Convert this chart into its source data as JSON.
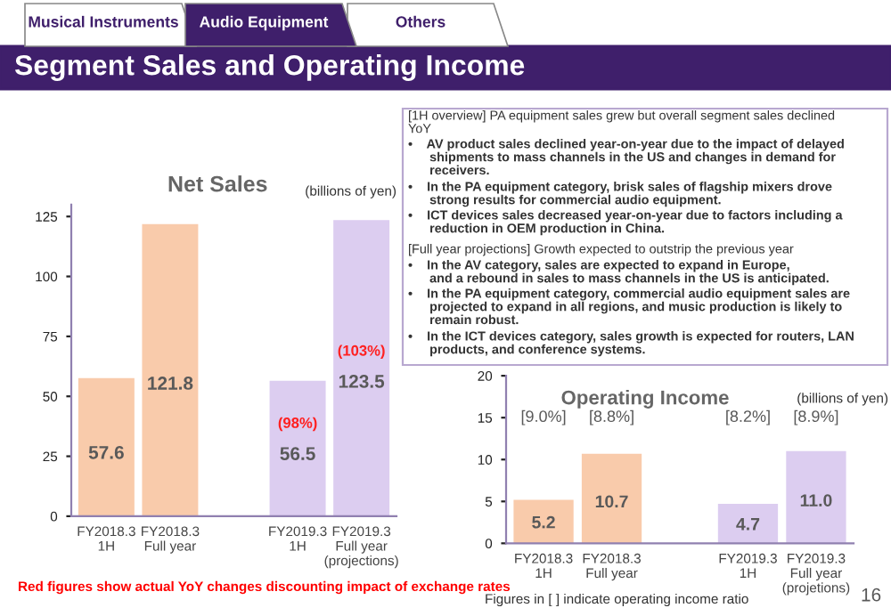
{
  "chart_data": [
    {
      "type": "other",
      "title": "Segment Sales and Operating Income",
      "annotations": [
        "Musical Instruments",
        "Audio Equipment",
        "Others",
        "[1H overview] PA equipment sales grew but overall segment sales declined\nYoY",
        "•    AV product sales declined year-on-year due to the impact of delayed\n      shipments to mass channels in the US and changes in demand for\n      receivers.",
        "•    In the PA equipment category, brisk sales of flagship mixers drove\n      strong results for commercial audio equipment.",
        "•    ICT devices sales decreased year-on-year due to factors including a\n      reduction in OEM production in China.",
        "[Full year projections] Growth expected to outstrip the previous year",
        "•    In the AV category, sales are expected to expand in Europe,\n      and a rebound in sales to mass channels in the US is anticipated.",
        "•    In the PA equipment category, commercial audio equipment sales are\n      projected to expand in all regions, and music production is likely to\n      remain robust.",
        "•    In the ICT devices category, sales growth is expected for routers, LAN\n      products, and conference systems.",
        "16"
      ]
    },
    {
      "type": "bar",
      "title": "Net Sales",
      "subtitle": "(billions of yen)",
      "categories": [
        "FY2018.3\n1H",
        "FY2018.3\nFull year",
        null,
        "FY2019.3\n1H",
        "FY2019.3\nFull year\n(projections)"
      ],
      "values": [
        57.6,
        121.8,
        null,
        56.5,
        123.5
      ],
      "colors": [
        "#f9cbab",
        "#f9cbab",
        "#ffffff",
        "#dccdf0",
        "#dccdf0"
      ],
      "ylim": [
        0,
        130
      ],
      "yticks": [
        0,
        25,
        50,
        75,
        100,
        125
      ],
      "data_labels": true,
      "grid": false,
      "legend": false,
      "annotations": [
        "(98%)",
        "(103%)",
        "Red figures show actual YoY changes discounting impact of exchange rates"
      ]
    },
    {
      "type": "bar",
      "title": "Operating Income",
      "subtitle": "(billions of yen)",
      "categories": [
        "FY2018.3\n1H",
        "FY2018.3\nFull year",
        null,
        "FY2019.3\n1H",
        "FY2019.3\nFull year\n(projetions)"
      ],
      "values": [
        5.2,
        10.7,
        null,
        4.7,
        11.0
      ],
      "value_labels": [
        "5.2",
        "10.7",
        null,
        "4.7",
        "11.0"
      ],
      "colors": [
        "#f9cbab",
        "#f9cbab",
        "#ffffff",
        "#dccdf0",
        "#dccdf0"
      ],
      "ylim": [
        0,
        20
      ],
      "yticks": [
        0,
        5,
        10,
        15,
        20
      ],
      "data_labels": true,
      "grid": false,
      "legend": false,
      "annotations": [
        "[9.0%]",
        "[8.8%]",
        "[8.2%]",
        "[8.9%]",
        "Figures in [ ] indicate operating income ratio"
      ]
    }
  ]
}
